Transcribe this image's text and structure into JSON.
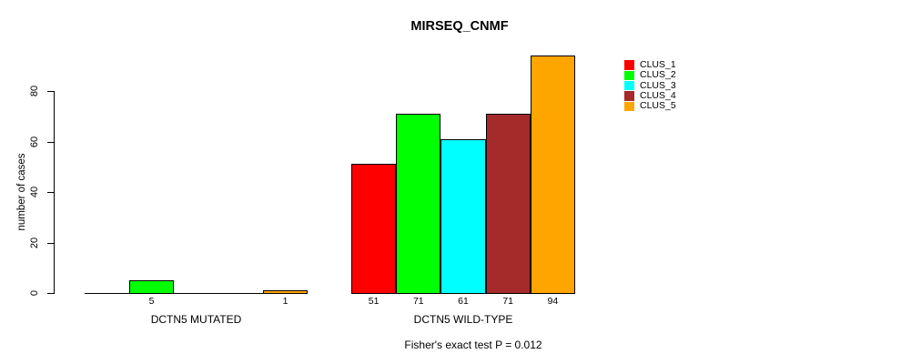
{
  "title": "MIRSEQ_CNMF",
  "y_axis": {
    "label": "number of cases",
    "ticks": [
      0,
      20,
      40,
      60,
      80
    ]
  },
  "footer": "Fisher's exact test P = 0.012",
  "legend": {
    "items": [
      {
        "label": "CLUS_1",
        "color": "#FF0000"
      },
      {
        "label": "CLUS_2",
        "color": "#00FF00"
      },
      {
        "label": "CLUS_3",
        "color": "#00FFFF"
      },
      {
        "label": "CLUS_4",
        "color": "#A52A2A"
      },
      {
        "label": "CLUS_5",
        "color": "#FFA500"
      }
    ]
  },
  "chart_data": {
    "type": "bar",
    "title": "MIRSEQ_CNMF",
    "xlabel": "",
    "ylabel": "number of cases",
    "ylim": [
      0,
      94
    ],
    "yticks": [
      0,
      20,
      40,
      60,
      80
    ],
    "grid": false,
    "legend_position": "top-right",
    "series": [
      "CLUS_1",
      "CLUS_2",
      "CLUS_3",
      "CLUS_4",
      "CLUS_5"
    ],
    "colors": [
      "#FF0000",
      "#00FF00",
      "#00FFFF",
      "#A52A2A",
      "#FFA500"
    ],
    "groups": [
      {
        "label": "DCTN5 MUTATED",
        "values": [
          0,
          5,
          0,
          0,
          1
        ]
      },
      {
        "label": "DCTN5 WILD-TYPE",
        "values": [
          51,
          71,
          61,
          71,
          94
        ]
      }
    ],
    "bar_labels_rule": "value shown under each bar when > 0",
    "annotation": "Fisher's exact test P = 0.012"
  }
}
